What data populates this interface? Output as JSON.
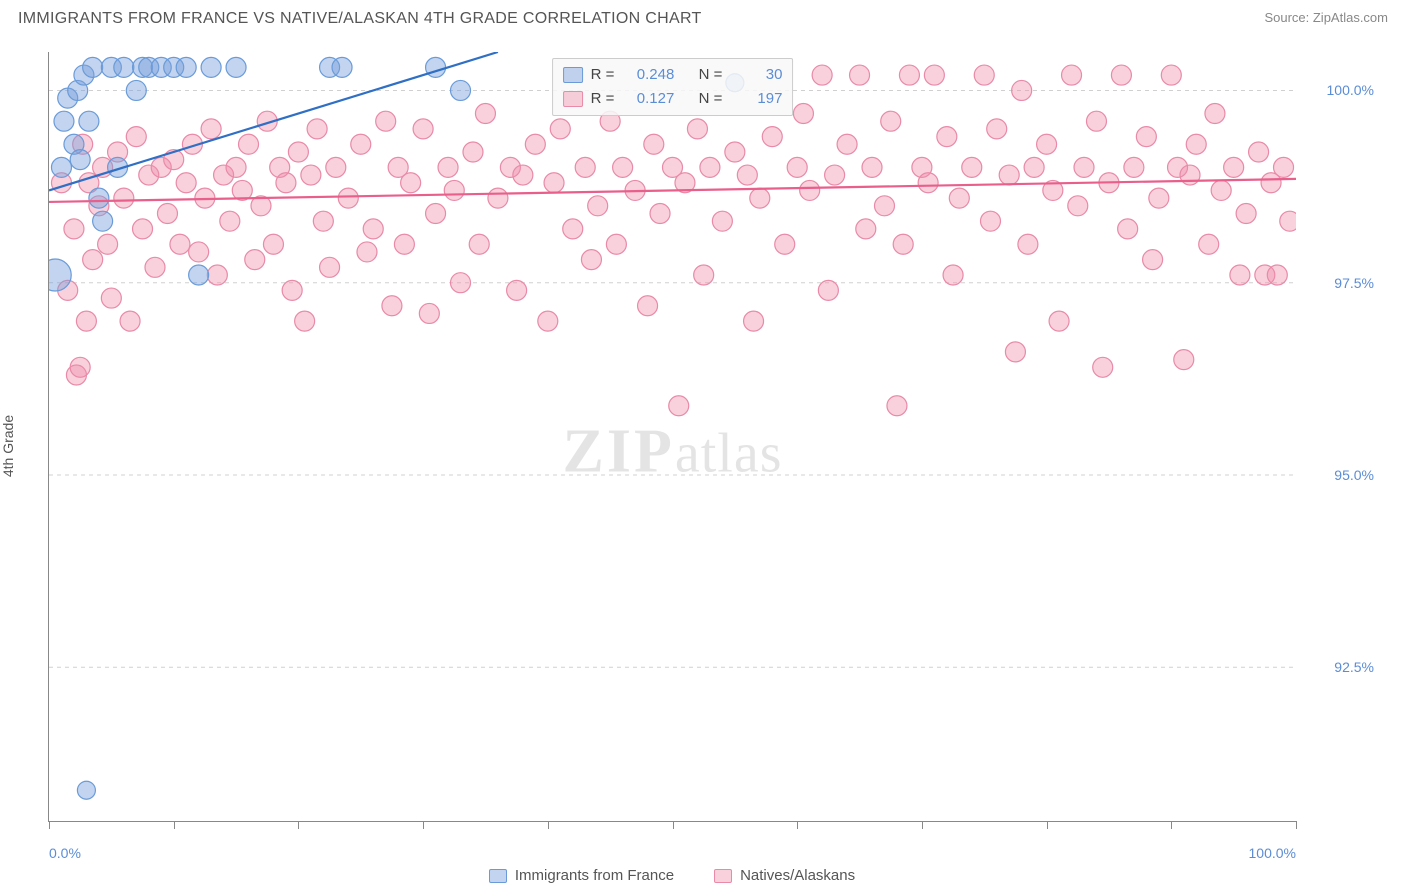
{
  "header": {
    "title": "IMMIGRANTS FROM FRANCE VS NATIVE/ALASKAN 4TH GRADE CORRELATION CHART",
    "source_prefix": "Source: ",
    "source_name": "ZipAtlas.com"
  },
  "ylabel": "4th Grade",
  "watermark": {
    "part1": "ZIP",
    "part2": "atlas"
  },
  "chart": {
    "type": "scatter",
    "background_color": "#ffffff",
    "grid_color": "#d0d0d0",
    "grid_dasharray": "4,4",
    "axis_color": "#888888",
    "tick_label_color": "#5b8dd6",
    "tick_fontsize": 14,
    "xlim": [
      0,
      100
    ],
    "ylim": [
      90.5,
      100.5
    ],
    "x_ticks": [
      0,
      10,
      20,
      30,
      40,
      50,
      60,
      70,
      80,
      90,
      100
    ],
    "x_tick_labels": {
      "0": "0.0%",
      "100": "100.0%"
    },
    "y_gridlines": [
      92.5,
      95.0,
      97.5,
      100.0
    ],
    "y_tick_labels": {
      "92.5": "92.5%",
      "95.0": "95.0%",
      "97.5": "97.5%",
      "100.0": "100.0%"
    },
    "series": {
      "france": {
        "label": "Immigrants from France",
        "R": "0.248",
        "N": "30",
        "marker_fill": "rgba(120,160,220,0.45)",
        "marker_stroke": "#6a9bd8",
        "marker_radius": 10,
        "trend_color": "#2f6fc4",
        "trend_width": 2.2,
        "trend": {
          "x1": 0,
          "y1": 98.7,
          "x2": 36,
          "y2": 100.5
        },
        "points": [
          {
            "x": 0.5,
            "y": 97.6,
            "r": 16
          },
          {
            "x": 1,
            "y": 99.0
          },
          {
            "x": 1.2,
            "y": 99.6
          },
          {
            "x": 1.5,
            "y": 99.9
          },
          {
            "x": 2,
            "y": 99.3
          },
          {
            "x": 2.3,
            "y": 100.0
          },
          {
            "x": 2.5,
            "y": 99.1
          },
          {
            "x": 2.8,
            "y": 100.2
          },
          {
            "x": 3.2,
            "y": 99.6
          },
          {
            "x": 3.5,
            "y": 100.3
          },
          {
            "x": 4,
            "y": 98.6
          },
          {
            "x": 4.3,
            "y": 98.3
          },
          {
            "x": 5,
            "y": 100.3
          },
          {
            "x": 5.5,
            "y": 99.0
          },
          {
            "x": 6,
            "y": 100.3
          },
          {
            "x": 7,
            "y": 100.0
          },
          {
            "x": 7.5,
            "y": 100.3
          },
          {
            "x": 8,
            "y": 100.3
          },
          {
            "x": 9,
            "y": 100.3
          },
          {
            "x": 10,
            "y": 100.3
          },
          {
            "x": 11,
            "y": 100.3
          },
          {
            "x": 12,
            "y": 97.6
          },
          {
            "x": 13,
            "y": 100.3
          },
          {
            "x": 15,
            "y": 100.3
          },
          {
            "x": 22.5,
            "y": 100.3
          },
          {
            "x": 23.5,
            "y": 100.3
          },
          {
            "x": 31,
            "y": 100.3
          },
          {
            "x": 33,
            "y": 100.0
          },
          {
            "x": 55,
            "y": 100.1,
            "r": 9
          },
          {
            "x": 3,
            "y": 90.9,
            "r": 9
          }
        ]
      },
      "natives": {
        "label": "Natives/Alaskans",
        "R": "0.127",
        "N": "197",
        "marker_fill": "rgba(240,140,170,0.40)",
        "marker_stroke": "#e88aa8",
        "marker_radius": 10,
        "trend_color": "#e85f8c",
        "trend_width": 2.2,
        "trend": {
          "x1": 0,
          "y1": 98.55,
          "x2": 100,
          "y2": 98.85
        },
        "points": [
          {
            "x": 1,
            "y": 98.8
          },
          {
            "x": 1.5,
            "y": 97.4
          },
          {
            "x": 2,
            "y": 98.2
          },
          {
            "x": 2.2,
            "y": 96.3
          },
          {
            "x": 2.5,
            "y": 96.4
          },
          {
            "x": 2.7,
            "y": 99.3
          },
          {
            "x": 3,
            "y": 97.0
          },
          {
            "x": 3.2,
            "y": 98.8
          },
          {
            "x": 3.5,
            "y": 97.8
          },
          {
            "x": 4,
            "y": 98.5
          },
          {
            "x": 4.3,
            "y": 99.0
          },
          {
            "x": 4.7,
            "y": 98.0
          },
          {
            "x": 5,
            "y": 97.3
          },
          {
            "x": 5.5,
            "y": 99.2
          },
          {
            "x": 6,
            "y": 98.6
          },
          {
            "x": 6.5,
            "y": 97.0
          },
          {
            "x": 7,
            "y": 99.4
          },
          {
            "x": 7.5,
            "y": 98.2
          },
          {
            "x": 8,
            "y": 98.9
          },
          {
            "x": 8.5,
            "y": 97.7
          },
          {
            "x": 9,
            "y": 99.0
          },
          {
            "x": 9.5,
            "y": 98.4
          },
          {
            "x": 10,
            "y": 99.1
          },
          {
            "x": 10.5,
            "y": 98.0
          },
          {
            "x": 11,
            "y": 98.8
          },
          {
            "x": 11.5,
            "y": 99.3
          },
          {
            "x": 12,
            "y": 97.9
          },
          {
            "x": 12.5,
            "y": 98.6
          },
          {
            "x": 13,
            "y": 99.5
          },
          {
            "x": 13.5,
            "y": 97.6
          },
          {
            "x": 14,
            "y": 98.9
          },
          {
            "x": 14.5,
            "y": 98.3
          },
          {
            "x": 15,
            "y": 99.0
          },
          {
            "x": 15.5,
            "y": 98.7
          },
          {
            "x": 16,
            "y": 99.3
          },
          {
            "x": 16.5,
            "y": 97.8
          },
          {
            "x": 17,
            "y": 98.5
          },
          {
            "x": 17.5,
            "y": 99.6
          },
          {
            "x": 18,
            "y": 98.0
          },
          {
            "x": 18.5,
            "y": 99.0
          },
          {
            "x": 19,
            "y": 98.8
          },
          {
            "x": 19.5,
            "y": 97.4
          },
          {
            "x": 20,
            "y": 99.2
          },
          {
            "x": 20.5,
            "y": 97.0
          },
          {
            "x": 21,
            "y": 98.9
          },
          {
            "x": 21.5,
            "y": 99.5
          },
          {
            "x": 22,
            "y": 98.3
          },
          {
            "x": 22.5,
            "y": 97.7
          },
          {
            "x": 23,
            "y": 99.0
          },
          {
            "x": 24,
            "y": 98.6
          },
          {
            "x": 25,
            "y": 99.3
          },
          {
            "x": 25.5,
            "y": 97.9
          },
          {
            "x": 26,
            "y": 98.2
          },
          {
            "x": 27,
            "y": 99.6
          },
          {
            "x": 27.5,
            "y": 97.2
          },
          {
            "x": 28,
            "y": 99.0
          },
          {
            "x": 28.5,
            "y": 98.0
          },
          {
            "x": 29,
            "y": 98.8
          },
          {
            "x": 30,
            "y": 99.5
          },
          {
            "x": 30.5,
            "y": 97.1
          },
          {
            "x": 31,
            "y": 98.4
          },
          {
            "x": 32,
            "y": 99.0
          },
          {
            "x": 32.5,
            "y": 98.7
          },
          {
            "x": 33,
            "y": 97.5
          },
          {
            "x": 34,
            "y": 99.2
          },
          {
            "x": 34.5,
            "y": 98.0
          },
          {
            "x": 35,
            "y": 99.7
          },
          {
            "x": 36,
            "y": 98.6
          },
          {
            "x": 37,
            "y": 99.0
          },
          {
            "x": 37.5,
            "y": 97.4
          },
          {
            "x": 38,
            "y": 98.9
          },
          {
            "x": 39,
            "y": 99.3
          },
          {
            "x": 40,
            "y": 97.0
          },
          {
            "x": 40.5,
            "y": 98.8
          },
          {
            "x": 41,
            "y": 99.5
          },
          {
            "x": 42,
            "y": 98.2
          },
          {
            "x": 43,
            "y": 99.0
          },
          {
            "x": 43.5,
            "y": 97.8
          },
          {
            "x": 44,
            "y": 98.5
          },
          {
            "x": 45,
            "y": 99.6
          },
          {
            "x": 45.5,
            "y": 98.0
          },
          {
            "x": 46,
            "y": 99.0
          },
          {
            "x": 47,
            "y": 98.7
          },
          {
            "x": 48,
            "y": 97.2
          },
          {
            "x": 48.5,
            "y": 99.3
          },
          {
            "x": 49,
            "y": 98.4
          },
          {
            "x": 50,
            "y": 99.0
          },
          {
            "x": 50.5,
            "y": 95.9
          },
          {
            "x": 51,
            "y": 98.8
          },
          {
            "x": 52,
            "y": 99.5
          },
          {
            "x": 52.5,
            "y": 97.6
          },
          {
            "x": 53,
            "y": 99.0
          },
          {
            "x": 54,
            "y": 98.3
          },
          {
            "x": 55,
            "y": 99.2
          },
          {
            "x": 56,
            "y": 98.9
          },
          {
            "x": 56.5,
            "y": 97.0
          },
          {
            "x": 57,
            "y": 98.6
          },
          {
            "x": 58,
            "y": 99.4
          },
          {
            "x": 59,
            "y": 98.0
          },
          {
            "x": 60,
            "y": 99.0
          },
          {
            "x": 60.5,
            "y": 99.7
          },
          {
            "x": 61,
            "y": 98.7
          },
          {
            "x": 62,
            "y": 100.2
          },
          {
            "x": 62.5,
            "y": 97.4
          },
          {
            "x": 63,
            "y": 98.9
          },
          {
            "x": 64,
            "y": 99.3
          },
          {
            "x": 65,
            "y": 100.2
          },
          {
            "x": 65.5,
            "y": 98.2
          },
          {
            "x": 66,
            "y": 99.0
          },
          {
            "x": 67,
            "y": 98.5
          },
          {
            "x": 67.5,
            "y": 99.6
          },
          {
            "x": 68,
            "y": 95.9
          },
          {
            "x": 68.5,
            "y": 98.0
          },
          {
            "x": 69,
            "y": 100.2
          },
          {
            "x": 70,
            "y": 99.0
          },
          {
            "x": 70.5,
            "y": 98.8
          },
          {
            "x": 71,
            "y": 100.2
          },
          {
            "x": 72,
            "y": 99.4
          },
          {
            "x": 72.5,
            "y": 97.6
          },
          {
            "x": 73,
            "y": 98.6
          },
          {
            "x": 74,
            "y": 99.0
          },
          {
            "x": 75,
            "y": 100.2
          },
          {
            "x": 75.5,
            "y": 98.3
          },
          {
            "x": 76,
            "y": 99.5
          },
          {
            "x": 77,
            "y": 98.9
          },
          {
            "x": 77.5,
            "y": 96.6
          },
          {
            "x": 78,
            "y": 100.0
          },
          {
            "x": 78.5,
            "y": 98.0
          },
          {
            "x": 79,
            "y": 99.0
          },
          {
            "x": 80,
            "y": 99.3
          },
          {
            "x": 80.5,
            "y": 98.7
          },
          {
            "x": 81,
            "y": 97.0
          },
          {
            "x": 82,
            "y": 100.2
          },
          {
            "x": 82.5,
            "y": 98.5
          },
          {
            "x": 83,
            "y": 99.0
          },
          {
            "x": 84,
            "y": 99.6
          },
          {
            "x": 84.5,
            "y": 96.4
          },
          {
            "x": 85,
            "y": 98.8
          },
          {
            "x": 86,
            "y": 100.2
          },
          {
            "x": 86.5,
            "y": 98.2
          },
          {
            "x": 87,
            "y": 99.0
          },
          {
            "x": 88,
            "y": 99.4
          },
          {
            "x": 88.5,
            "y": 97.8
          },
          {
            "x": 89,
            "y": 98.6
          },
          {
            "x": 90,
            "y": 100.2
          },
          {
            "x": 90.5,
            "y": 99.0
          },
          {
            "x": 91,
            "y": 96.5
          },
          {
            "x": 91.5,
            "y": 98.9
          },
          {
            "x": 92,
            "y": 99.3
          },
          {
            "x": 93,
            "y": 98.0
          },
          {
            "x": 93.5,
            "y": 99.7
          },
          {
            "x": 94,
            "y": 98.7
          },
          {
            "x": 95,
            "y": 99.0
          },
          {
            "x": 95.5,
            "y": 97.6
          },
          {
            "x": 96,
            "y": 98.4
          },
          {
            "x": 97,
            "y": 99.2
          },
          {
            "x": 97.5,
            "y": 97.6
          },
          {
            "x": 98,
            "y": 98.8
          },
          {
            "x": 98.5,
            "y": 97.6
          },
          {
            "x": 99,
            "y": 99.0
          },
          {
            "x": 99.5,
            "y": 98.3
          }
        ]
      }
    },
    "legend_top": {
      "r_label": "R =",
      "n_label": "N ="
    },
    "legend_bottom_swatch_border": {
      "france": "#6a9bd8",
      "natives": "#e88aa8"
    },
    "legend_bottom_swatch_fill": {
      "france": "rgba(120,160,220,0.45)",
      "natives": "rgba(240,140,170,0.40)"
    }
  }
}
